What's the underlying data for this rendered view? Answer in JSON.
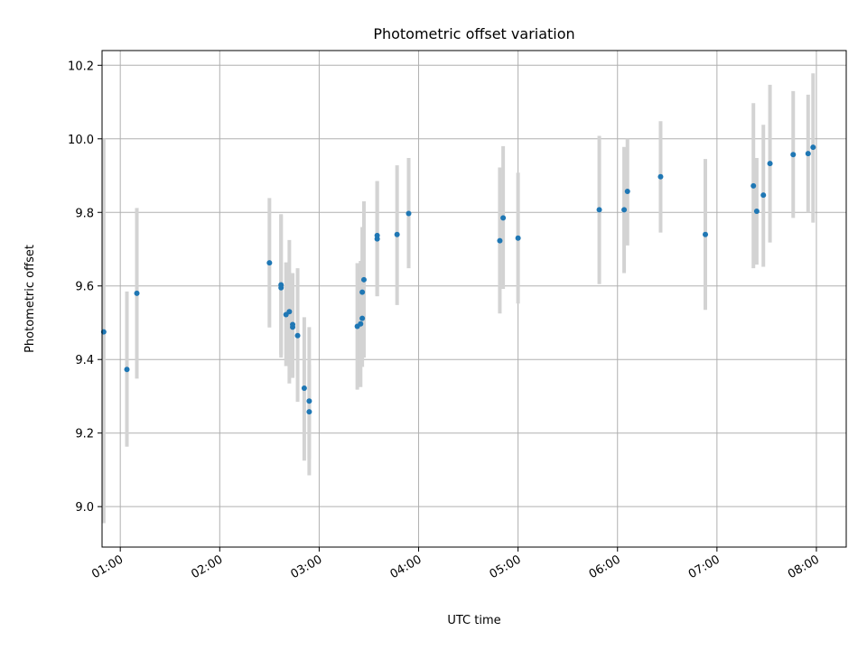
{
  "chart_data": {
    "type": "scatter",
    "title": "Photometric offset variation",
    "xlabel": "UTC time",
    "ylabel": "Photometric offset",
    "x_ticks": [
      "01:00",
      "02:00",
      "03:00",
      "04:00",
      "05:00",
      "06:00",
      "07:00",
      "08:00"
    ],
    "y_ticks": [
      "9.0",
      "9.2",
      "9.4",
      "9.6",
      "9.8",
      "10.0",
      "10.2"
    ],
    "xlim": [
      "00:49",
      "08:18"
    ],
    "ylim": [
      8.89,
      10.24
    ],
    "grid": true,
    "point_color": "#1f77b4",
    "errorbar_color": "#d3d3d3",
    "points": [
      {
        "x": "00:50",
        "y": 9.475,
        "lo": 8.955,
        "hi": 10.0
      },
      {
        "x": "01:04",
        "y": 9.373,
        "lo": 9.163,
        "hi": 9.585
      },
      {
        "x": "01:10",
        "y": 9.58,
        "lo": 9.348,
        "hi": 9.812
      },
      {
        "x": "02:30",
        "y": 9.663,
        "lo": 9.487,
        "hi": 9.839
      },
      {
        "x": "02:37",
        "y": 9.595,
        "lo": 9.405,
        "hi": 9.795
      },
      {
        "x": "02:37",
        "y": 9.603,
        "lo": 9.413,
        "hi": 9.793
      },
      {
        "x": "02:40",
        "y": 9.522,
        "lo": 9.382,
        "hi": 9.664
      },
      {
        "x": "02:42",
        "y": 9.53,
        "lo": 9.335,
        "hi": 9.725
      },
      {
        "x": "02:44",
        "y": 9.488,
        "lo": 9.35,
        "hi": 9.63
      },
      {
        "x": "02:44",
        "y": 9.495,
        "lo": 9.355,
        "hi": 9.635
      },
      {
        "x": "02:47",
        "y": 9.465,
        "lo": 9.285,
        "hi": 9.648
      },
      {
        "x": "02:51",
        "y": 9.322,
        "lo": 9.125,
        "hi": 9.515
      },
      {
        "x": "02:54",
        "y": 9.287,
        "lo": 9.085,
        "hi": 9.488
      },
      {
        "x": "02:54",
        "y": 9.258,
        "lo": 9.13,
        "hi": 9.385
      },
      {
        "x": "03:23",
        "y": 9.49,
        "lo": 9.318,
        "hi": 9.662
      },
      {
        "x": "03:25",
        "y": 9.497,
        "lo": 9.325,
        "hi": 9.668
      },
      {
        "x": "03:26",
        "y": 9.512,
        "lo": 9.38,
        "hi": 9.645
      },
      {
        "x": "03:26",
        "y": 9.583,
        "lo": 9.405,
        "hi": 9.76
      },
      {
        "x": "03:27",
        "y": 9.617,
        "lo": 9.405,
        "hi": 9.83
      },
      {
        "x": "03:35",
        "y": 9.737,
        "lo": 9.572,
        "hi": 9.885
      },
      {
        "x": "03:35",
        "y": 9.728,
        "lo": 9.572,
        "hi": 9.885
      },
      {
        "x": "03:47",
        "y": 9.74,
        "lo": 9.548,
        "hi": 9.928
      },
      {
        "x": "03:54",
        "y": 9.797,
        "lo": 9.648,
        "hi": 9.948
      },
      {
        "x": "04:49",
        "y": 9.723,
        "lo": 9.525,
        "hi": 9.922
      },
      {
        "x": "04:51",
        "y": 9.785,
        "lo": 9.592,
        "hi": 9.98
      },
      {
        "x": "05:00",
        "y": 9.73,
        "lo": 9.552,
        "hi": 9.908
      },
      {
        "x": "05:49",
        "y": 9.807,
        "lo": 9.605,
        "hi": 10.008
      },
      {
        "x": "06:04",
        "y": 9.807,
        "lo": 9.635,
        "hi": 9.978
      },
      {
        "x": "06:06",
        "y": 9.857,
        "lo": 9.71,
        "hi": 10.0
      },
      {
        "x": "06:26",
        "y": 9.897,
        "lo": 9.745,
        "hi": 10.048
      },
      {
        "x": "06:53",
        "y": 9.74,
        "lo": 9.535,
        "hi": 9.945
      },
      {
        "x": "07:22",
        "y": 9.872,
        "lo": 9.648,
        "hi": 10.097
      },
      {
        "x": "07:24",
        "y": 9.803,
        "lo": 9.658,
        "hi": 9.948
      },
      {
        "x": "07:28",
        "y": 9.847,
        "lo": 9.652,
        "hi": 10.038
      },
      {
        "x": "07:32",
        "y": 9.933,
        "lo": 9.718,
        "hi": 10.147
      },
      {
        "x": "07:46",
        "y": 9.957,
        "lo": 9.785,
        "hi": 10.13
      },
      {
        "x": "07:55",
        "y": 9.96,
        "lo": 9.8,
        "hi": 10.12
      },
      {
        "x": "07:58",
        "y": 9.977,
        "lo": 9.772,
        "hi": 10.178
      }
    ]
  }
}
